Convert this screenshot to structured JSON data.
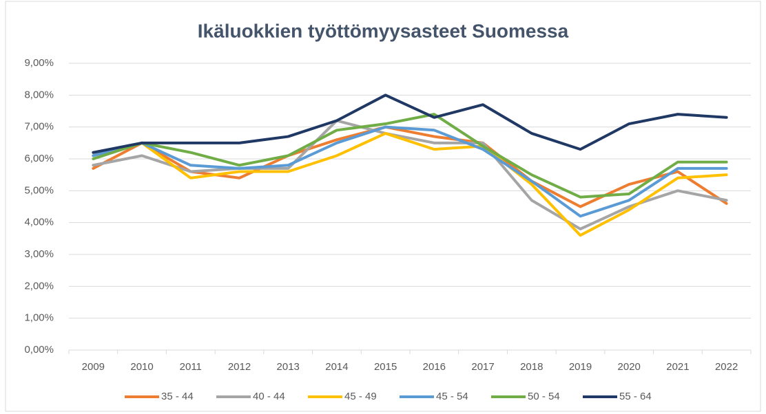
{
  "chart_data": {
    "type": "line",
    "title": "Ikäluokkien työttömyysasteet Suomessa",
    "categories": [
      "2009",
      "2010",
      "2011",
      "2012",
      "2013",
      "2014",
      "2015",
      "2016",
      "2017",
      "2018",
      "2019",
      "2020",
      "2021",
      "2022"
    ],
    "series": [
      {
        "name": "35 - 44",
        "color": "#ED7D31",
        "values": [
          5.7,
          6.5,
          5.6,
          5.4,
          6.1,
          6.6,
          7.0,
          6.7,
          6.5,
          5.3,
          4.5,
          5.2,
          5.6,
          4.6
        ]
      },
      {
        "name": "40 - 44",
        "color": "#A5A5A5",
        "values": [
          5.8,
          6.1,
          5.6,
          5.7,
          5.7,
          7.2,
          6.8,
          6.5,
          6.5,
          4.7,
          3.8,
          4.5,
          5.0,
          4.7
        ]
      },
      {
        "name": "45 - 49",
        "color": "#FFC000",
        "values": [
          6.1,
          6.5,
          5.4,
          5.6,
          5.6,
          6.1,
          6.8,
          6.3,
          6.4,
          5.2,
          3.6,
          4.4,
          5.4,
          5.5
        ]
      },
      {
        "name": "45 - 54",
        "color": "#5B9BD5",
        "values": [
          6.1,
          6.5,
          5.8,
          5.7,
          5.8,
          6.5,
          7.0,
          6.9,
          6.3,
          5.3,
          4.2,
          4.7,
          5.7,
          5.7
        ]
      },
      {
        "name": "50 - 54",
        "color": "#70AD47",
        "values": [
          6.0,
          6.5,
          6.2,
          5.8,
          6.1,
          6.9,
          7.1,
          7.4,
          6.4,
          5.5,
          4.8,
          4.9,
          5.9,
          5.9
        ]
      },
      {
        "name": "55 - 64",
        "color": "#203864",
        "values": [
          6.2,
          6.5,
          6.5,
          6.5,
          6.7,
          7.2,
          8.0,
          7.3,
          7.7,
          6.8,
          6.3,
          7.1,
          7.4,
          7.3
        ]
      }
    ],
    "ylim": [
      0,
      9
    ],
    "yticks": [
      {
        "value": 0,
        "label": "0,00%"
      },
      {
        "value": 1,
        "label": "1,00%"
      },
      {
        "value": 2,
        "label": "2,00%"
      },
      {
        "value": 3,
        "label": "3,00%"
      },
      {
        "value": 4,
        "label": "4,00%"
      },
      {
        "value": 5,
        "label": "5,00%"
      },
      {
        "value": 6,
        "label": "6,00%"
      },
      {
        "value": 7,
        "label": "7,00%"
      },
      {
        "value": 8,
        "label": "8,00%"
      },
      {
        "value": 9,
        "label": "9,00%"
      }
    ],
    "grid": true,
    "legend": "bottom"
  }
}
